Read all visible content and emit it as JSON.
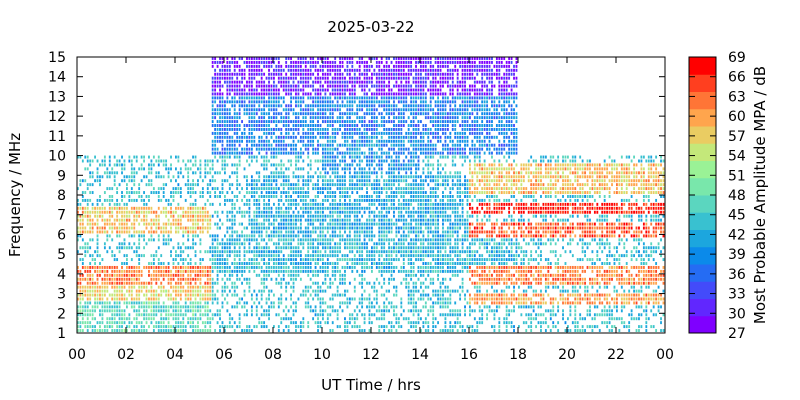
{
  "chart_data": {
    "type": "heatmap",
    "title": "2025-03-22",
    "xlabel": "UT Time / hrs",
    "ylabel": "Frequency / MHz",
    "colorbar_label": "Most Probable Amplitude MPA / dB",
    "xlim": [
      0,
      24
    ],
    "ylim": [
      1,
      15
    ],
    "x_tick_labels": [
      "00",
      "02",
      "04",
      "06",
      "08",
      "10",
      "12",
      "14",
      "16",
      "18",
      "20",
      "22",
      "00"
    ],
    "y_tick_labels": [
      "1",
      "2",
      "3",
      "4",
      "5",
      "6",
      "7",
      "8",
      "9",
      "10",
      "11",
      "12",
      "13",
      "14",
      "15"
    ],
    "colorbar_range": [
      27,
      69
    ],
    "colorbar_tick_labels": [
      "27",
      "30",
      "33",
      "36",
      "39",
      "42",
      "45",
      "48",
      "51",
      "54",
      "57",
      "60",
      "63",
      "66",
      "69"
    ],
    "colorbar_colors": [
      "#7f00ff",
      "#6127fe",
      "#434bfa",
      "#256cf3",
      "#0b8aea",
      "#1ca6de",
      "#39c1d0",
      "#5bd6bf",
      "#79e7ab",
      "#9af296",
      "#c4e87a",
      "#eacc62",
      "#ffa54d",
      "#ff7536",
      "#ff3f1f",
      "#ff0000"
    ],
    "grid": false,
    "observed_coverage": [
      {
        "x_range": [
          0,
          5.5
        ],
        "y_range": [
          1,
          10
        ]
      },
      {
        "x_range": [
          5.5,
          18
        ],
        "y_range": [
          1,
          15
        ]
      },
      {
        "x_range": [
          18,
          24
        ],
        "y_range": [
          1,
          10
        ]
      }
    ],
    "features": [
      {
        "x_range": [
          0,
          5.5
        ],
        "y_range": [
          3.5,
          4.5
        ],
        "amplitude_db": 62
      },
      {
        "x_range": [
          0,
          5.5
        ],
        "y_range": [
          2.5,
          3.5
        ],
        "amplitude_db": 57
      },
      {
        "x_range": [
          0,
          5.5
        ],
        "y_range": [
          6,
          7.5
        ],
        "amplitude_db": 58
      },
      {
        "x_range": [
          0,
          5.5
        ],
        "y_range": [
          1,
          2.5
        ],
        "amplitude_db": 47
      },
      {
        "x_range": [
          5.5,
          18
        ],
        "y_range": [
          13,
          15
        ],
        "amplitude_db": 30
      },
      {
        "x_range": [
          5.5,
          18
        ],
        "y_range": [
          10,
          13
        ],
        "amplitude_db": 38
      },
      {
        "x_range": [
          10,
          14
        ],
        "y_range": [
          9,
          11
        ],
        "amplitude_db": 40
      },
      {
        "x_range": [
          7,
          16
        ],
        "y_range": [
          6,
          9
        ],
        "amplitude_db": 42
      },
      {
        "x_range": [
          5.5,
          18
        ],
        "y_range": [
          4,
          6
        ],
        "amplitude_db": 43
      },
      {
        "x_range": [
          16,
          24
        ],
        "y_range": [
          7,
          7.6
        ],
        "amplitude_db": 67
      },
      {
        "x_range": [
          16,
          24
        ],
        "y_range": [
          5.8,
          6.6
        ],
        "amplitude_db": 64
      },
      {
        "x_range": [
          16,
          24
        ],
        "y_range": [
          3.5,
          4.5
        ],
        "amplitude_db": 62
      },
      {
        "x_range": [
          16,
          24
        ],
        "y_range": [
          2.4,
          3
        ],
        "amplitude_db": 60
      },
      {
        "x_range": [
          16,
          24
        ],
        "y_range": [
          8,
          9.5
        ],
        "amplitude_db": 58
      }
    ]
  }
}
